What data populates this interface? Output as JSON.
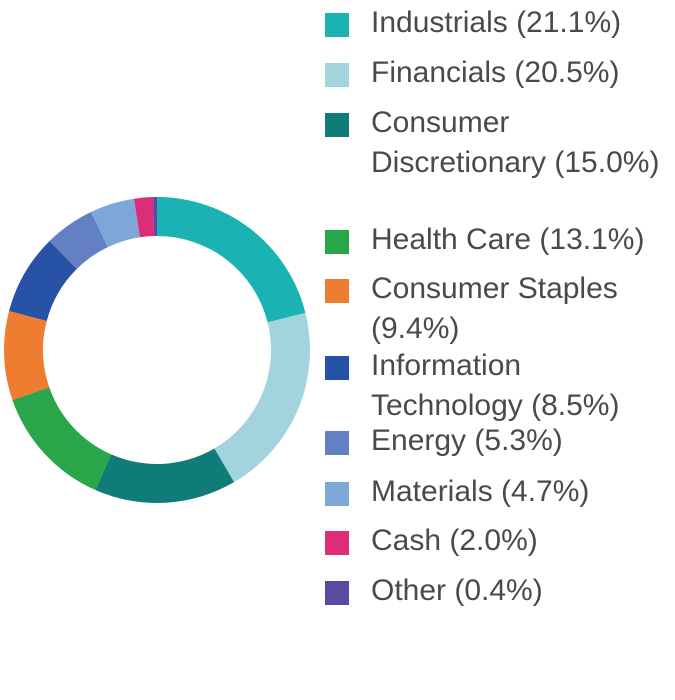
{
  "chart_data": {
    "type": "pie",
    "title": "",
    "legend": "right",
    "slices": [
      {
        "label": "Industrials (21.1%)",
        "value": 21.1,
        "color": "#1ab2b2"
      },
      {
        "label": "Financials (20.5%)",
        "value": 20.5,
        "color": "#a2d4de"
      },
      {
        "label": "Consumer Discretionary (15.0%)",
        "value": 15.0,
        "color": "#107c79"
      },
      {
        "label": "Health Care (13.1%)",
        "value": 13.1,
        "color": "#2aa64a"
      },
      {
        "label": "Consumer Staples (9.4%)",
        "value": 9.4,
        "color": "#ee7d32"
      },
      {
        "label": "Information Technology (8.5%)",
        "value": 8.5,
        "color": "#2752a5"
      },
      {
        "label": "Energy (5.3%)",
        "value": 5.3,
        "color": "#6480c4"
      },
      {
        "label": "Materials (4.7%)",
        "value": 4.7,
        "color": "#7ea6d6"
      },
      {
        "label": "Cash (2.0%)",
        "value": 2.0,
        "color": "#dd2d79"
      },
      {
        "label": "Other (0.4%)",
        "value": 0.4,
        "color": "#5a4aa0"
      }
    ]
  }
}
